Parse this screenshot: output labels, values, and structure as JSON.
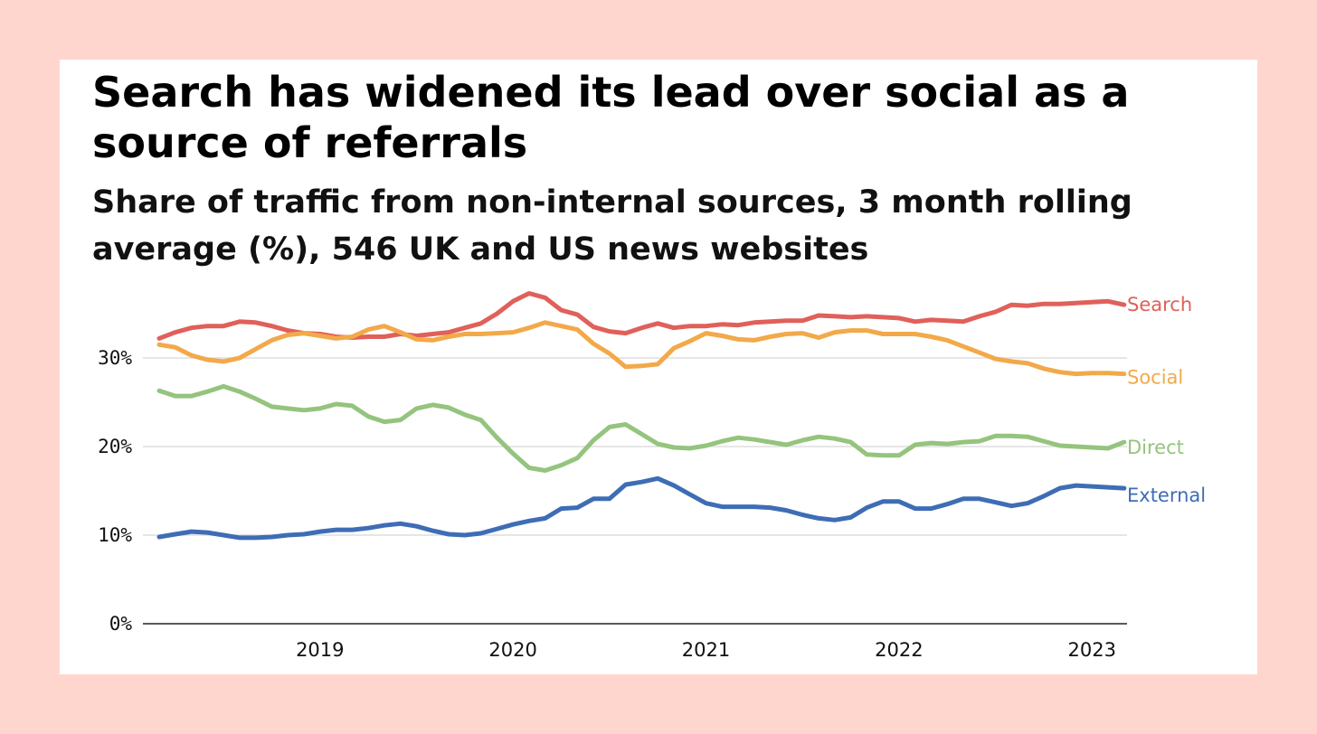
{
  "chart_data": {
    "type": "line",
    "title": "Search has widened its lead over social as a source of referrals",
    "subtitle": "Share of traffic from non-internal sources, 3 month rolling average (%), 546 UK and US news websites",
    "xlabel": "",
    "ylabel": "",
    "ylim": [
      0,
      36
    ],
    "yticks": [
      0,
      10,
      20,
      30
    ],
    "ytick_labels": [
      "0%",
      "10%",
      "20%",
      "30%"
    ],
    "xticks": [
      2019,
      2020,
      2021,
      2022,
      2023
    ],
    "xtick_labels": [
      "2019",
      "2020",
      "2021",
      "2022",
      "2023"
    ],
    "grid": true,
    "legend": "direct labels at line ends (right)",
    "x_start": "2018-03",
    "x_end": "2023-03",
    "series": [
      {
        "name": "Search",
        "color": "#e0605a",
        "values": [
          32.2,
          32.9,
          33.4,
          33.6,
          33.6,
          34.1,
          34.0,
          33.6,
          33.1,
          32.8,
          32.7,
          32.4,
          32.3,
          32.4,
          32.4,
          32.7,
          32.5,
          32.7,
          32.9,
          33.4,
          33.9,
          35.0,
          36.4,
          37.3,
          36.8,
          35.4,
          34.9,
          33.5,
          33.0,
          32.8,
          33.4,
          33.9,
          33.4,
          33.6,
          33.6,
          33.8,
          33.7,
          34.0,
          34.1,
          34.2,
          34.2,
          34.8,
          34.7,
          34.6,
          34.7,
          34.6,
          34.5,
          34.1,
          34.3,
          34.2,
          34.1,
          34.7,
          35.2,
          36.0,
          35.9,
          36.1,
          36.1,
          36.2,
          36.3,
          36.4,
          36.0
        ]
      },
      {
        "name": "Social",
        "color": "#f2a94a",
        "values": [
          31.5,
          31.2,
          30.3,
          29.8,
          29.6,
          30.0,
          31.0,
          32.0,
          32.6,
          32.8,
          32.5,
          32.2,
          32.4,
          33.2,
          33.6,
          32.9,
          32.1,
          32.0,
          32.4,
          32.7,
          32.7,
          32.8,
          32.9,
          33.4,
          34.0,
          33.6,
          33.2,
          31.6,
          30.5,
          29.0,
          29.1,
          29.3,
          31.1,
          31.9,
          32.8,
          32.5,
          32.1,
          32.0,
          32.4,
          32.7,
          32.8,
          32.3,
          32.9,
          33.1,
          33.1,
          32.7,
          32.7,
          32.7,
          32.4,
          32.0,
          31.3,
          30.6,
          29.9,
          29.6,
          29.4,
          28.8,
          28.4,
          28.2,
          28.3,
          28.3,
          28.2
        ]
      },
      {
        "name": "Direct",
        "color": "#94c47d",
        "values": [
          26.3,
          25.7,
          25.7,
          26.2,
          26.8,
          26.2,
          25.4,
          24.5,
          24.3,
          24.1,
          24.3,
          24.8,
          24.6,
          23.4,
          22.8,
          23.0,
          24.3,
          24.7,
          24.4,
          23.6,
          23.0,
          21.0,
          19.2,
          17.6,
          17.3,
          17.9,
          18.7,
          20.7,
          22.2,
          22.5,
          21.4,
          20.3,
          19.9,
          19.8,
          20.1,
          20.6,
          21.0,
          20.8,
          20.5,
          20.2,
          20.7,
          21.1,
          20.9,
          20.5,
          19.1,
          19.0,
          19.0,
          20.2,
          20.4,
          20.3,
          20.5,
          20.6,
          21.2,
          21.2,
          21.1,
          20.6,
          20.1,
          20.0,
          19.9,
          19.8,
          20.5
        ]
      },
      {
        "name": "External",
        "color": "#3e6db5",
        "values": [
          9.8,
          10.1,
          10.4,
          10.3,
          10.0,
          9.7,
          9.7,
          9.8,
          10.0,
          10.1,
          10.4,
          10.6,
          10.6,
          10.8,
          11.1,
          11.3,
          11.0,
          10.5,
          10.1,
          10.0,
          10.2,
          10.7,
          11.2,
          11.6,
          11.9,
          13.0,
          13.1,
          14.1,
          14.1,
          15.7,
          16.0,
          16.4,
          15.6,
          14.6,
          13.6,
          13.2,
          13.2,
          13.2,
          13.1,
          12.8,
          12.3,
          11.9,
          11.7,
          12.0,
          13.1,
          13.8,
          13.8,
          13.0,
          13.0,
          13.5,
          14.1,
          14.1,
          13.7,
          13.3,
          13.6,
          14.4,
          15.3,
          15.6,
          15.5,
          15.4,
          15.3
        ]
      }
    ]
  }
}
